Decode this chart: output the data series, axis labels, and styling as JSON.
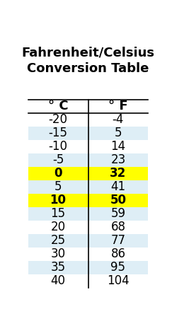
{
  "title": "Fahrenheit/Celsius\nConversion Table",
  "col_headers": [
    "° C",
    "° F"
  ],
  "rows": [
    [
      "-20",
      "-4"
    ],
    [
      "-15",
      "5"
    ],
    [
      "-10",
      "14"
    ],
    [
      "-5",
      "23"
    ],
    [
      "0",
      "32"
    ],
    [
      "5",
      "41"
    ],
    [
      "10",
      "50"
    ],
    [
      "15",
      "59"
    ],
    [
      "20",
      "68"
    ],
    [
      "25",
      "77"
    ],
    [
      "30",
      "86"
    ],
    [
      "35",
      "95"
    ],
    [
      "40",
      "104"
    ]
  ],
  "highlight_yellow": [
    4,
    6
  ],
  "row_colors_alt": [
    "#ffffff",
    "#deeef6"
  ],
  "highlight_color": "#ffff00",
  "title_color": "#000000",
  "header_color": "#000000",
  "data_color": "#000000",
  "highlight_text_color": "#000000",
  "bg_color": "#ffffff",
  "title_fontsize": 13,
  "header_fontsize": 13,
  "data_fontsize": 12
}
